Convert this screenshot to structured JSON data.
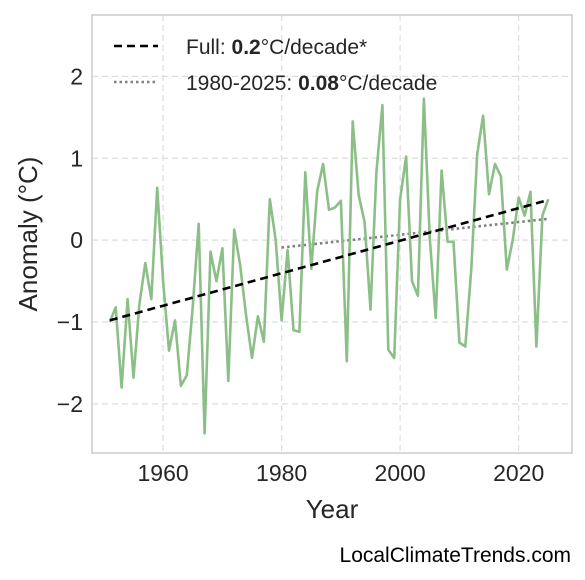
{
  "chart_data": {
    "type": "line",
    "title": "",
    "xlabel": "Year",
    "ylabel": "Anomaly (°C)",
    "xlim": [
      1948,
      2029
    ],
    "ylim": [
      -2.6,
      2.75
    ],
    "x_ticks": [
      1960,
      1980,
      2000,
      2020
    ],
    "y_ticks": [
      -2,
      -1,
      0,
      1,
      2
    ],
    "y_tick_labels": [
      "−2",
      "−1",
      "0",
      "1",
      "2"
    ],
    "grid": true,
    "legend_position": "top-left",
    "colors": {
      "series": "#8cbf88",
      "trend_full": "#000000",
      "trend_recent": "#808080"
    },
    "series": [
      {
        "x": [
          1951,
          1952,
          1953,
          1954,
          1955,
          1956,
          1957,
          1958,
          1959,
          1960,
          1961,
          1962,
          1963,
          1964,
          1965,
          1966,
          1967,
          1968,
          1969,
          1970,
          1971,
          1972,
          1973,
          1974,
          1975,
          1976,
          1977,
          1978,
          1979,
          1980,
          1981,
          1982,
          1983,
          1984,
          1985,
          1986,
          1987,
          1988,
          1989,
          1990,
          1991,
          1992,
          1993,
          1994,
          1995,
          1996,
          1997,
          1998,
          1999,
          2000,
          2001,
          2002,
          2003,
          2004,
          2005,
          2006,
          2007,
          2008,
          2009,
          2010,
          2011,
          2012,
          2013,
          2014,
          2015,
          2016,
          2017,
          2018,
          2019,
          2020,
          2021,
          2022,
          2023,
          2024,
          2025
        ],
        "values": [
          -1.0,
          -0.82,
          -1.8,
          -0.72,
          -1.68,
          -0.78,
          -0.28,
          -0.72,
          0.64,
          -0.5,
          -1.35,
          -0.98,
          -1.78,
          -1.65,
          -0.82,
          0.2,
          -2.36,
          -0.14,
          -0.5,
          -0.1,
          -1.72,
          0.13,
          -0.3,
          -0.92,
          -1.44,
          -0.93,
          -1.24,
          0.5,
          0.0,
          -0.98,
          -0.12,
          -1.1,
          -1.12,
          0.83,
          -0.35,
          0.6,
          0.93,
          0.37,
          0.4,
          0.48,
          -1.48,
          1.45,
          0.55,
          0.22,
          -0.85,
          0.83,
          1.65,
          -1.34,
          -1.44,
          0.5,
          1.02,
          -0.5,
          -0.68,
          1.73,
          0.02,
          -0.95,
          0.85,
          -0.02,
          -0.02,
          -1.25,
          -1.3,
          -0.35,
          1.05,
          1.52,
          0.56,
          0.93,
          0.78,
          -0.36,
          0.0,
          0.52,
          0.3,
          0.59,
          -1.3,
          0.3,
          0.5
        ]
      }
    ],
    "trend_full": {
      "x": [
        1951,
        2025
      ],
      "y": [
        -0.98,
        0.49
      ],
      "label_prefix": "Full: ",
      "label_value": "0.2",
      "label_suffix": "°C/decade*"
    },
    "trend_recent": {
      "x": [
        1980,
        2025
      ],
      "y": [
        -0.09,
        0.26
      ],
      "label_prefix": "1980-2025: ",
      "label_value": "0.08",
      "label_suffix": "°C/decade"
    }
  },
  "watermark": "LocalClimateTrends.com"
}
